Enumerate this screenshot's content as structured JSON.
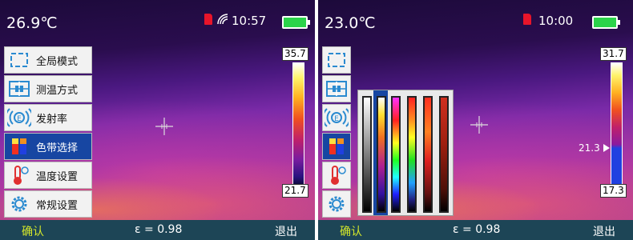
{
  "screens": [
    {
      "temperature": "26.9℃",
      "time": "10:57",
      "menu": [
        "全局模式",
        "测温方式",
        "发射率",
        "色带选择",
        "温度设置",
        "常规设置"
      ],
      "scale_max": "35.7",
      "scale_min": "21.7",
      "confirm": "确认",
      "emissivity": "ε = 0.98",
      "exit": "退出"
    },
    {
      "temperature": "23.0℃",
      "time": "10:00",
      "scale_max": "31.7",
      "scale_marker": "21.3",
      "scale_min": "17.3",
      "confirm": "确认",
      "emissivity": "ε = 0.98",
      "exit": "退出"
    }
  ]
}
